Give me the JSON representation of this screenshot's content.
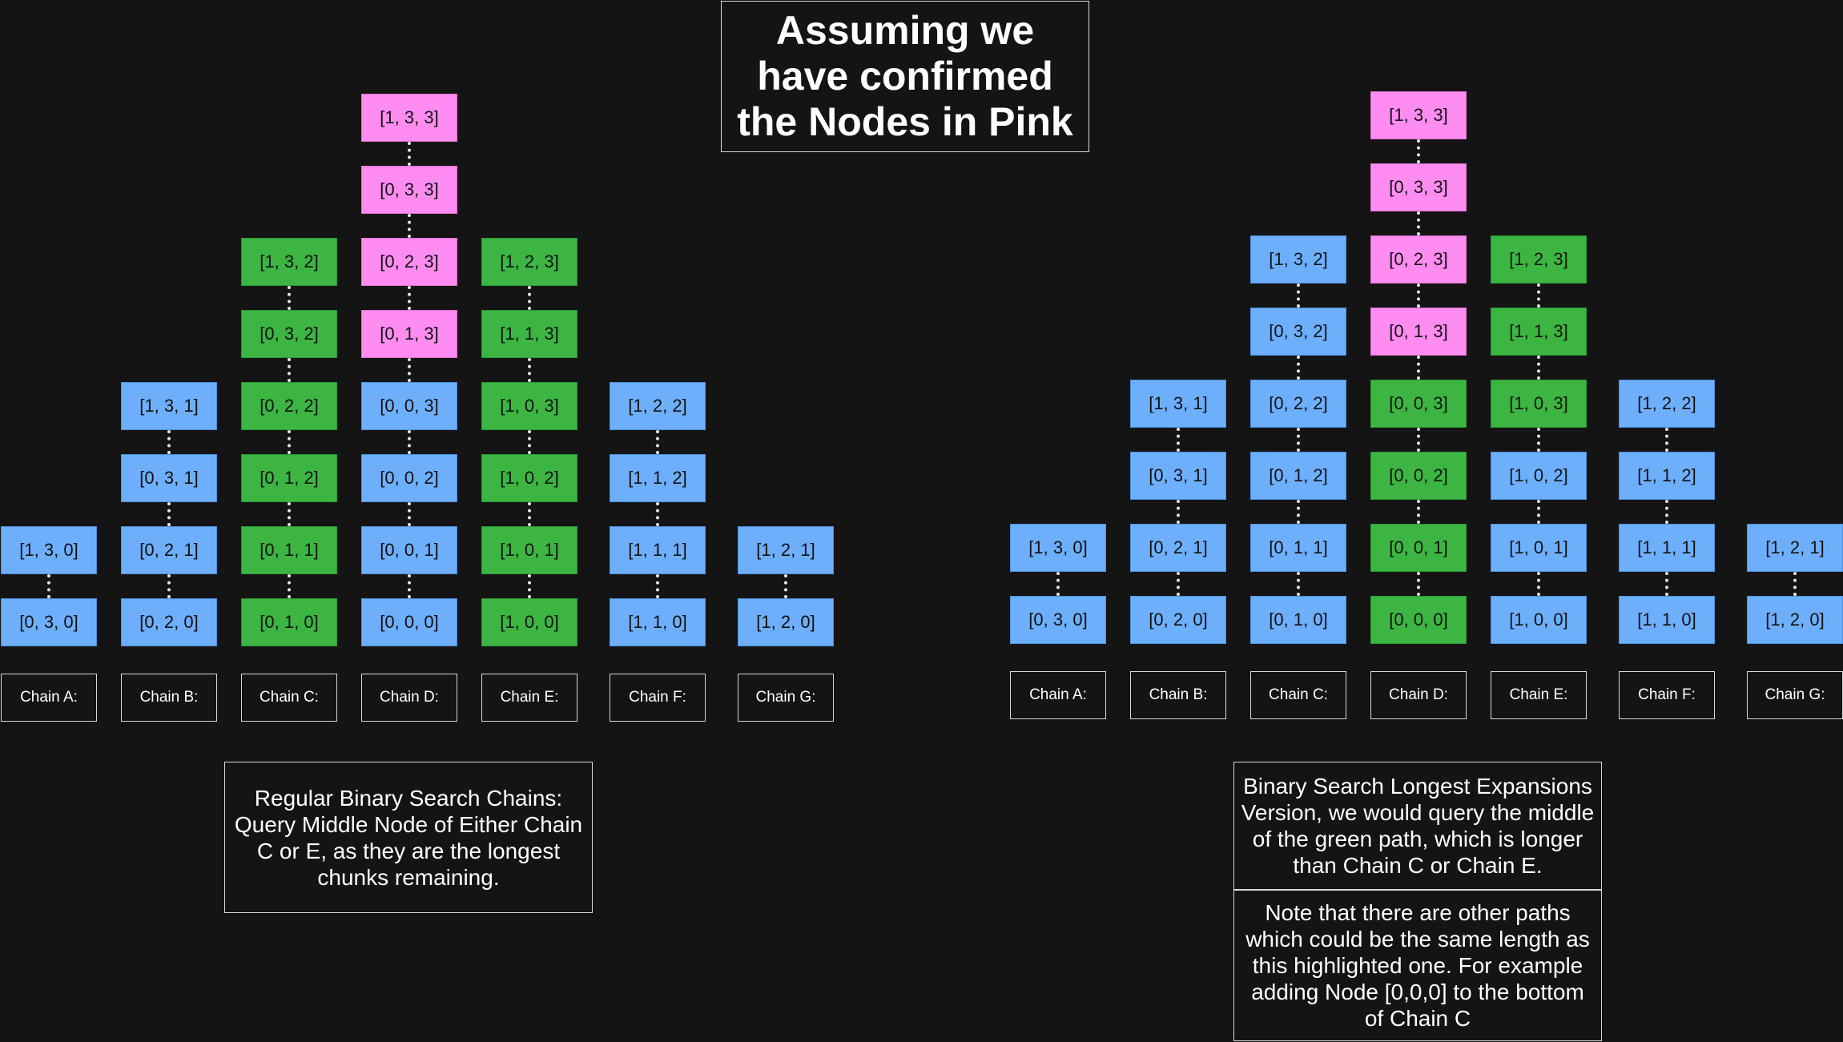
{
  "title": "Assuming we have confirmed the Nodes in Pink",
  "colors": {
    "pink": "#ff8cf0",
    "green": "#3cb542",
    "blue": "#6eaffc",
    "background": "#141414"
  },
  "left_diagram": {
    "caption": "Regular Binary Search Chains: Query Middle Node of  Either Chain C or E, as they are the longest chunks remaining.",
    "chains": [
      {
        "label": "Chain A:",
        "nodes": [
          {
            "text": "[0, 3, 0]",
            "color": "blue"
          },
          {
            "text": "[1, 3, 0]",
            "color": "blue"
          }
        ]
      },
      {
        "label": "Chain B:",
        "nodes": [
          {
            "text": "[0, 2, 0]",
            "color": "blue"
          },
          {
            "text": "[0, 2, 1]",
            "color": "blue"
          },
          {
            "text": "[0, 3, 1]",
            "color": "blue"
          },
          {
            "text": "[1, 3, 1]",
            "color": "blue"
          }
        ]
      },
      {
        "label": "Chain C:",
        "nodes": [
          {
            "text": "[0, 1, 0]",
            "color": "green"
          },
          {
            "text": "[0, 1, 1]",
            "color": "green"
          },
          {
            "text": "[0, 1, 2]",
            "color": "green"
          },
          {
            "text": "[0, 2, 2]",
            "color": "green"
          },
          {
            "text": "[0, 3, 2]",
            "color": "green"
          },
          {
            "text": "[1, 3, 2]",
            "color": "green"
          }
        ]
      },
      {
        "label": "Chain D:",
        "nodes": [
          {
            "text": "[0, 0, 0]",
            "color": "blue"
          },
          {
            "text": "[0, 0, 1]",
            "color": "blue"
          },
          {
            "text": "[0, 0, 2]",
            "color": "blue"
          },
          {
            "text": "[0, 0, 3]",
            "color": "blue"
          },
          {
            "text": "[0, 1, 3]",
            "color": "pink"
          },
          {
            "text": "[0, 2, 3]",
            "color": "pink"
          },
          {
            "text": "[0, 3, 3]",
            "color": "pink"
          },
          {
            "text": "[1, 3, 3]",
            "color": "pink"
          }
        ]
      },
      {
        "label": "Chain E:",
        "nodes": [
          {
            "text": "[1, 0, 0]",
            "color": "green"
          },
          {
            "text": "[1, 0, 1]",
            "color": "green"
          },
          {
            "text": "[1, 0, 2]",
            "color": "green"
          },
          {
            "text": "[1, 0, 3]",
            "color": "green"
          },
          {
            "text": "[1, 1, 3]",
            "color": "green"
          },
          {
            "text": "[1, 2, 3]",
            "color": "green"
          }
        ]
      },
      {
        "label": "Chain F:",
        "nodes": [
          {
            "text": "[1, 1, 0]",
            "color": "blue"
          },
          {
            "text": "[1, 1, 1]",
            "color": "blue"
          },
          {
            "text": "[1, 1, 2]",
            "color": "blue"
          },
          {
            "text": "[1, 2, 2]",
            "color": "blue"
          }
        ]
      },
      {
        "label": "Chain G:",
        "nodes": [
          {
            "text": "[1, 2, 0]",
            "color": "blue"
          },
          {
            "text": "[1, 2, 1]",
            "color": "blue"
          }
        ]
      }
    ]
  },
  "right_diagram": {
    "caption": "Binary Search Longest Expansions Version, we would query the middle of the green path, which is longer than Chain C or Chain E.",
    "note": "Note that there are other paths which could be the same length as this highlighted one. For example adding Node [0,0,0] to the bottom of Chain C",
    "chains": [
      {
        "label": "Chain A:",
        "nodes": [
          {
            "text": "[0, 3, 0]",
            "color": "blue"
          },
          {
            "text": "[1, 3, 0]",
            "color": "blue"
          }
        ]
      },
      {
        "label": "Chain B:",
        "nodes": [
          {
            "text": "[0, 2, 0]",
            "color": "blue"
          },
          {
            "text": "[0, 2, 1]",
            "color": "blue"
          },
          {
            "text": "[0, 3, 1]",
            "color": "blue"
          },
          {
            "text": "[1, 3, 1]",
            "color": "blue"
          }
        ]
      },
      {
        "label": "Chain C:",
        "nodes": [
          {
            "text": "[0, 1, 0]",
            "color": "blue"
          },
          {
            "text": "[0, 1, 1]",
            "color": "blue"
          },
          {
            "text": "[0, 1, 2]",
            "color": "blue"
          },
          {
            "text": "[0, 2, 2]",
            "color": "blue"
          },
          {
            "text": "[0, 3, 2]",
            "color": "blue"
          },
          {
            "text": "[1, 3, 2]",
            "color": "blue"
          }
        ]
      },
      {
        "label": "Chain D:",
        "nodes": [
          {
            "text": "[0, 0, 0]",
            "color": "green"
          },
          {
            "text": "[0, 0, 1]",
            "color": "green"
          },
          {
            "text": "[0, 0, 2]",
            "color": "green"
          },
          {
            "text": "[0, 0, 3]",
            "color": "green"
          },
          {
            "text": "[0, 1, 3]",
            "color": "pink"
          },
          {
            "text": "[0, 2, 3]",
            "color": "pink"
          },
          {
            "text": "[0, 3, 3]",
            "color": "pink"
          },
          {
            "text": "[1, 3, 3]",
            "color": "pink"
          }
        ]
      },
      {
        "label": "Chain E:",
        "nodes": [
          {
            "text": "[1, 0, 0]",
            "color": "blue"
          },
          {
            "text": "[1, 0, 1]",
            "color": "blue"
          },
          {
            "text": "[1, 0, 2]",
            "color": "blue"
          },
          {
            "text": "[1, 0, 3]",
            "color": "green"
          },
          {
            "text": "[1, 1, 3]",
            "color": "green"
          },
          {
            "text": "[1, 2, 3]",
            "color": "green"
          }
        ]
      },
      {
        "label": "Chain F:",
        "nodes": [
          {
            "text": "[1, 1, 0]",
            "color": "blue"
          },
          {
            "text": "[1, 1, 1]",
            "color": "blue"
          },
          {
            "text": "[1, 1, 2]",
            "color": "blue"
          },
          {
            "text": "[1, 2, 2]",
            "color": "blue"
          }
        ]
      },
      {
        "label": "Chain G:",
        "nodes": [
          {
            "text": "[1, 2, 0]",
            "color": "blue"
          },
          {
            "text": "[1, 2, 1]",
            "color": "blue"
          }
        ]
      }
    ]
  }
}
